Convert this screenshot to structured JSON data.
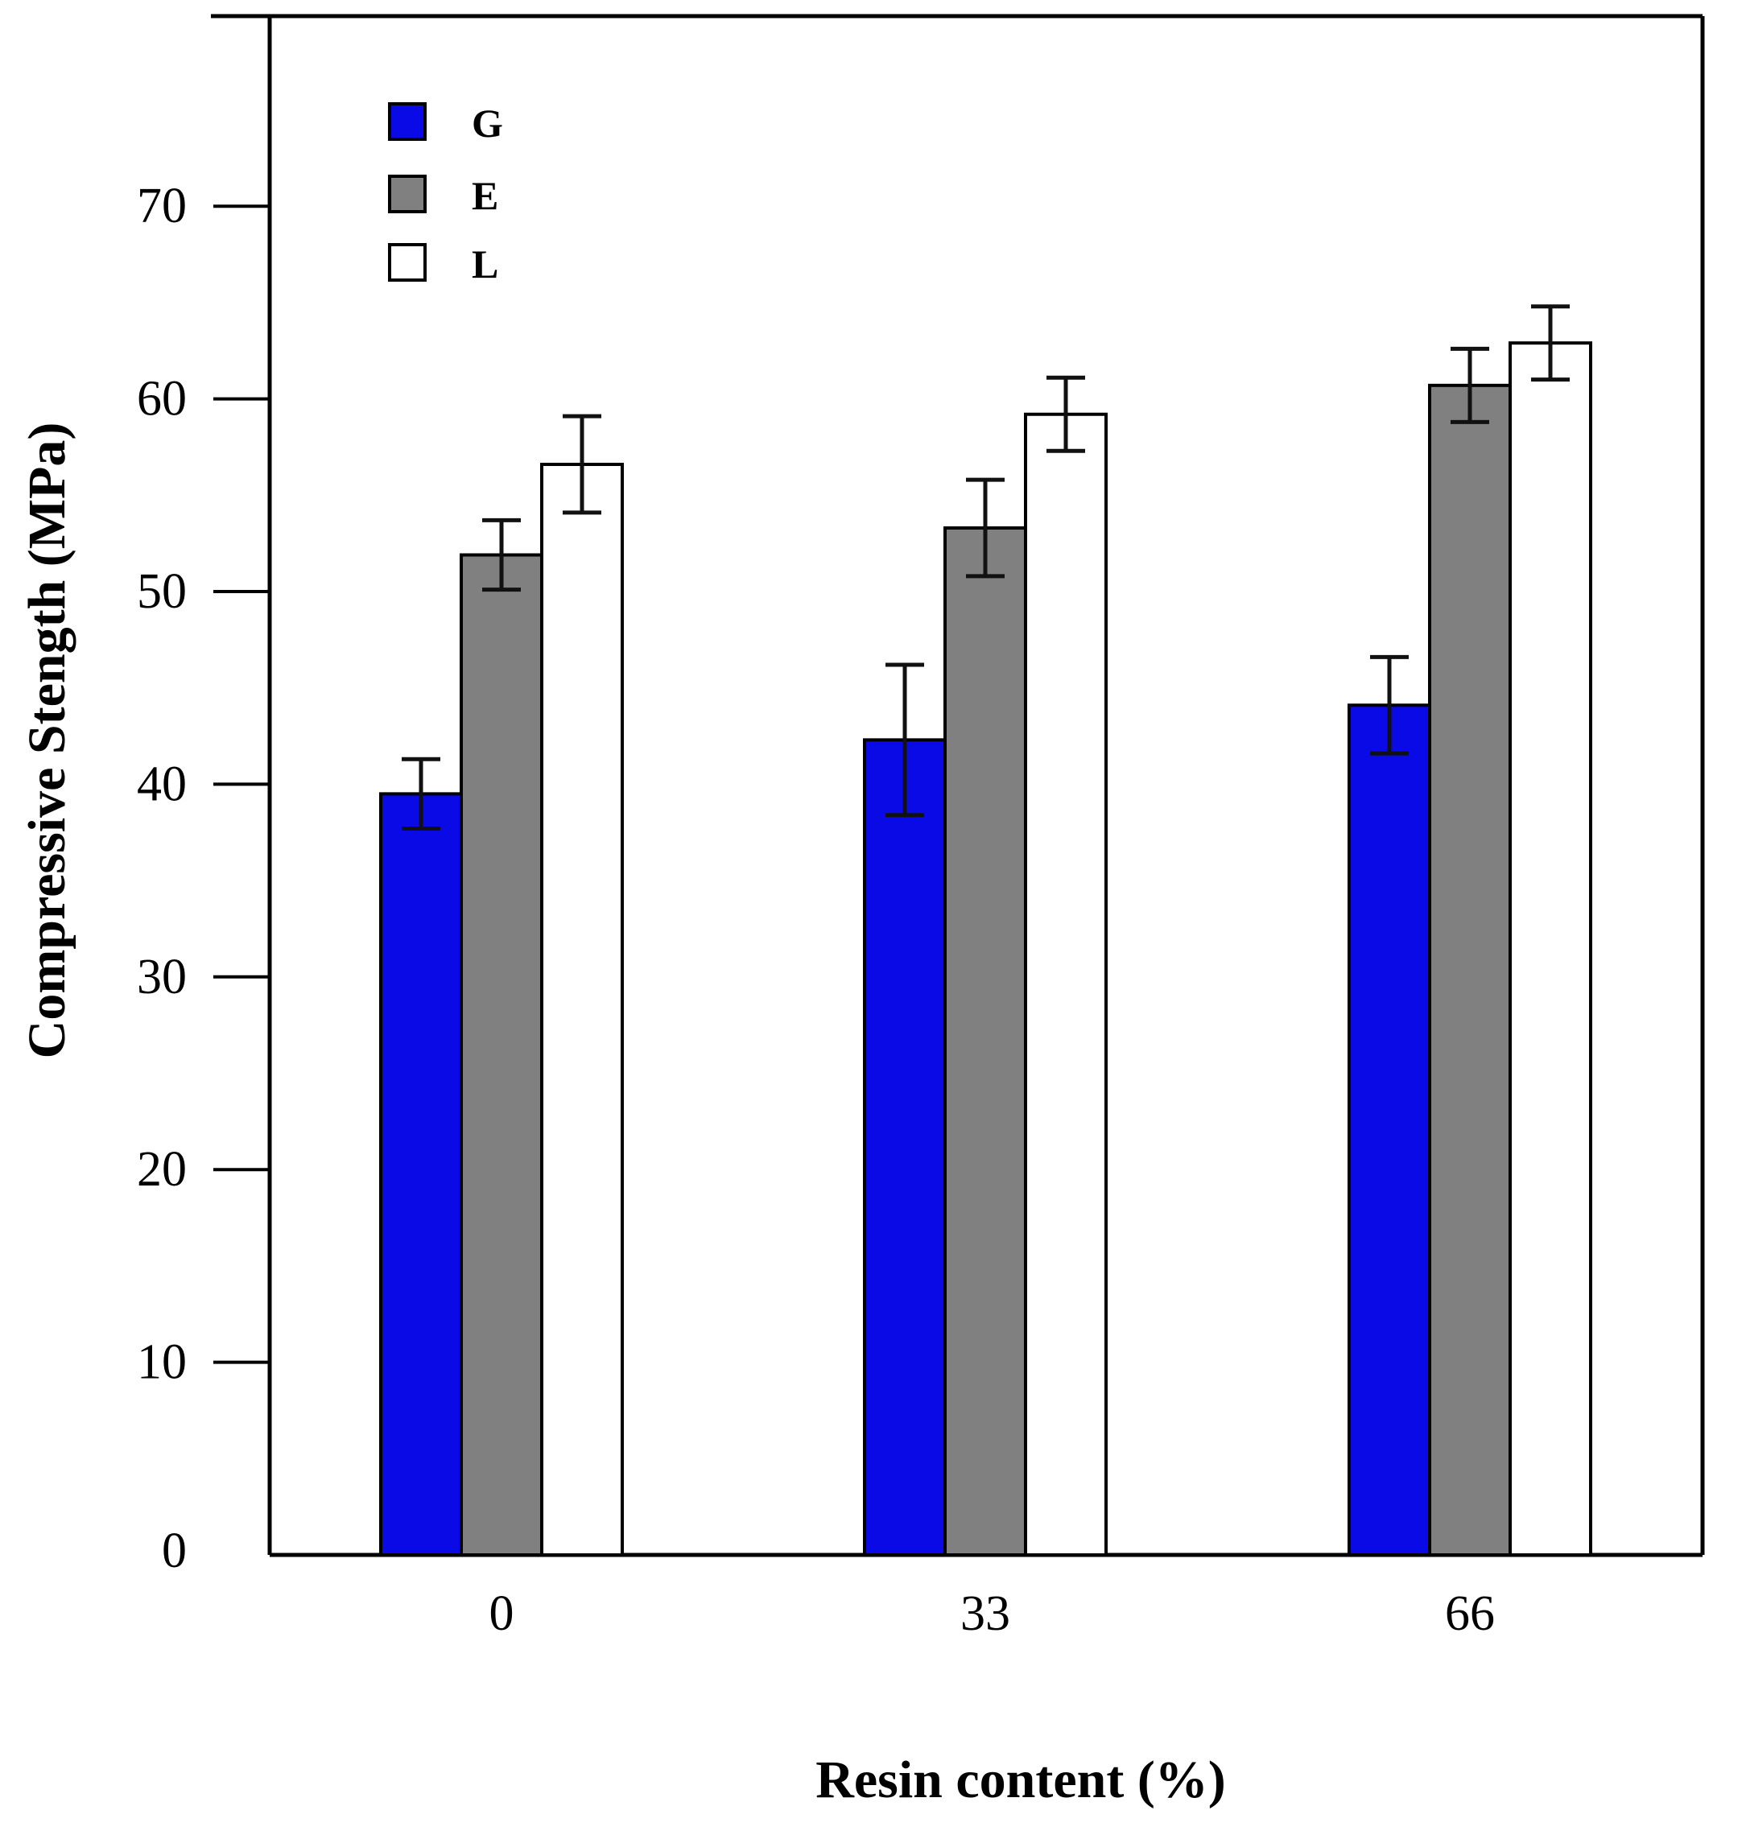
{
  "chart_data": {
    "type": "bar",
    "categories": [
      "0",
      "33",
      "66"
    ],
    "series": [
      {
        "name": "G",
        "color": "#0a0ae6",
        "values": [
          39.5,
          42.3,
          44.1
        ],
        "errors": [
          1.8,
          3.9,
          2.5
        ]
      },
      {
        "name": "E",
        "color": "#808080",
        "values": [
          51.9,
          53.3,
          60.7
        ],
        "errors": [
          1.8,
          2.5,
          1.9
        ]
      },
      {
        "name": "L",
        "color": "#ffffff",
        "values": [
          56.6,
          59.2,
          62.9
        ],
        "errors": [
          2.5,
          1.9,
          1.9
        ]
      }
    ],
    "title": "",
    "xlabel": "Resin content (%)",
    "ylabel": "Compressive Stength  (MPa)",
    "ylim": [
      0,
      80
    ],
    "yticks": [
      0,
      10,
      20,
      30,
      40,
      50,
      60,
      70
    ],
    "grid": false,
    "legend_position": "top-left"
  }
}
